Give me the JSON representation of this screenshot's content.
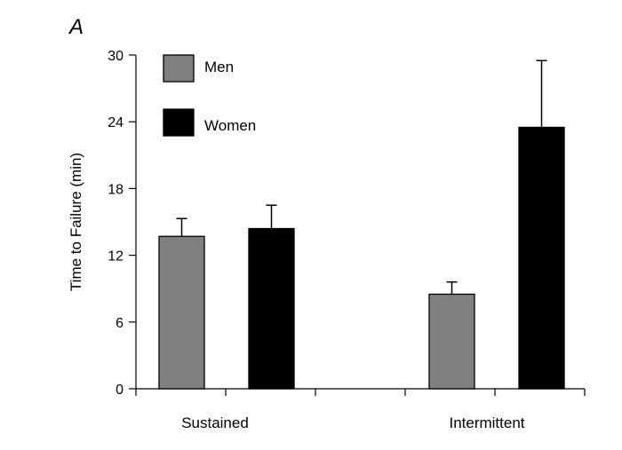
{
  "panel_label": "A",
  "chart_data": {
    "type": "bar",
    "categories": [
      "Sustained",
      "Intermittent"
    ],
    "series": [
      {
        "name": "Men",
        "values": [
          13.7,
          8.5
        ],
        "errors": [
          1.6,
          1.1
        ],
        "color": "#808080"
      },
      {
        "name": "Women",
        "values": [
          14.4,
          23.5
        ],
        "errors": [
          2.1,
          6.0
        ],
        "color": "#000000"
      }
    ],
    "xlabel": "",
    "ylabel": "Time to Failure (min)",
    "ylim": [
      0,
      30
    ],
    "yticks": [
      0,
      6,
      12,
      18,
      24,
      30
    ],
    "legend_position": "top-left",
    "grid": false
  }
}
